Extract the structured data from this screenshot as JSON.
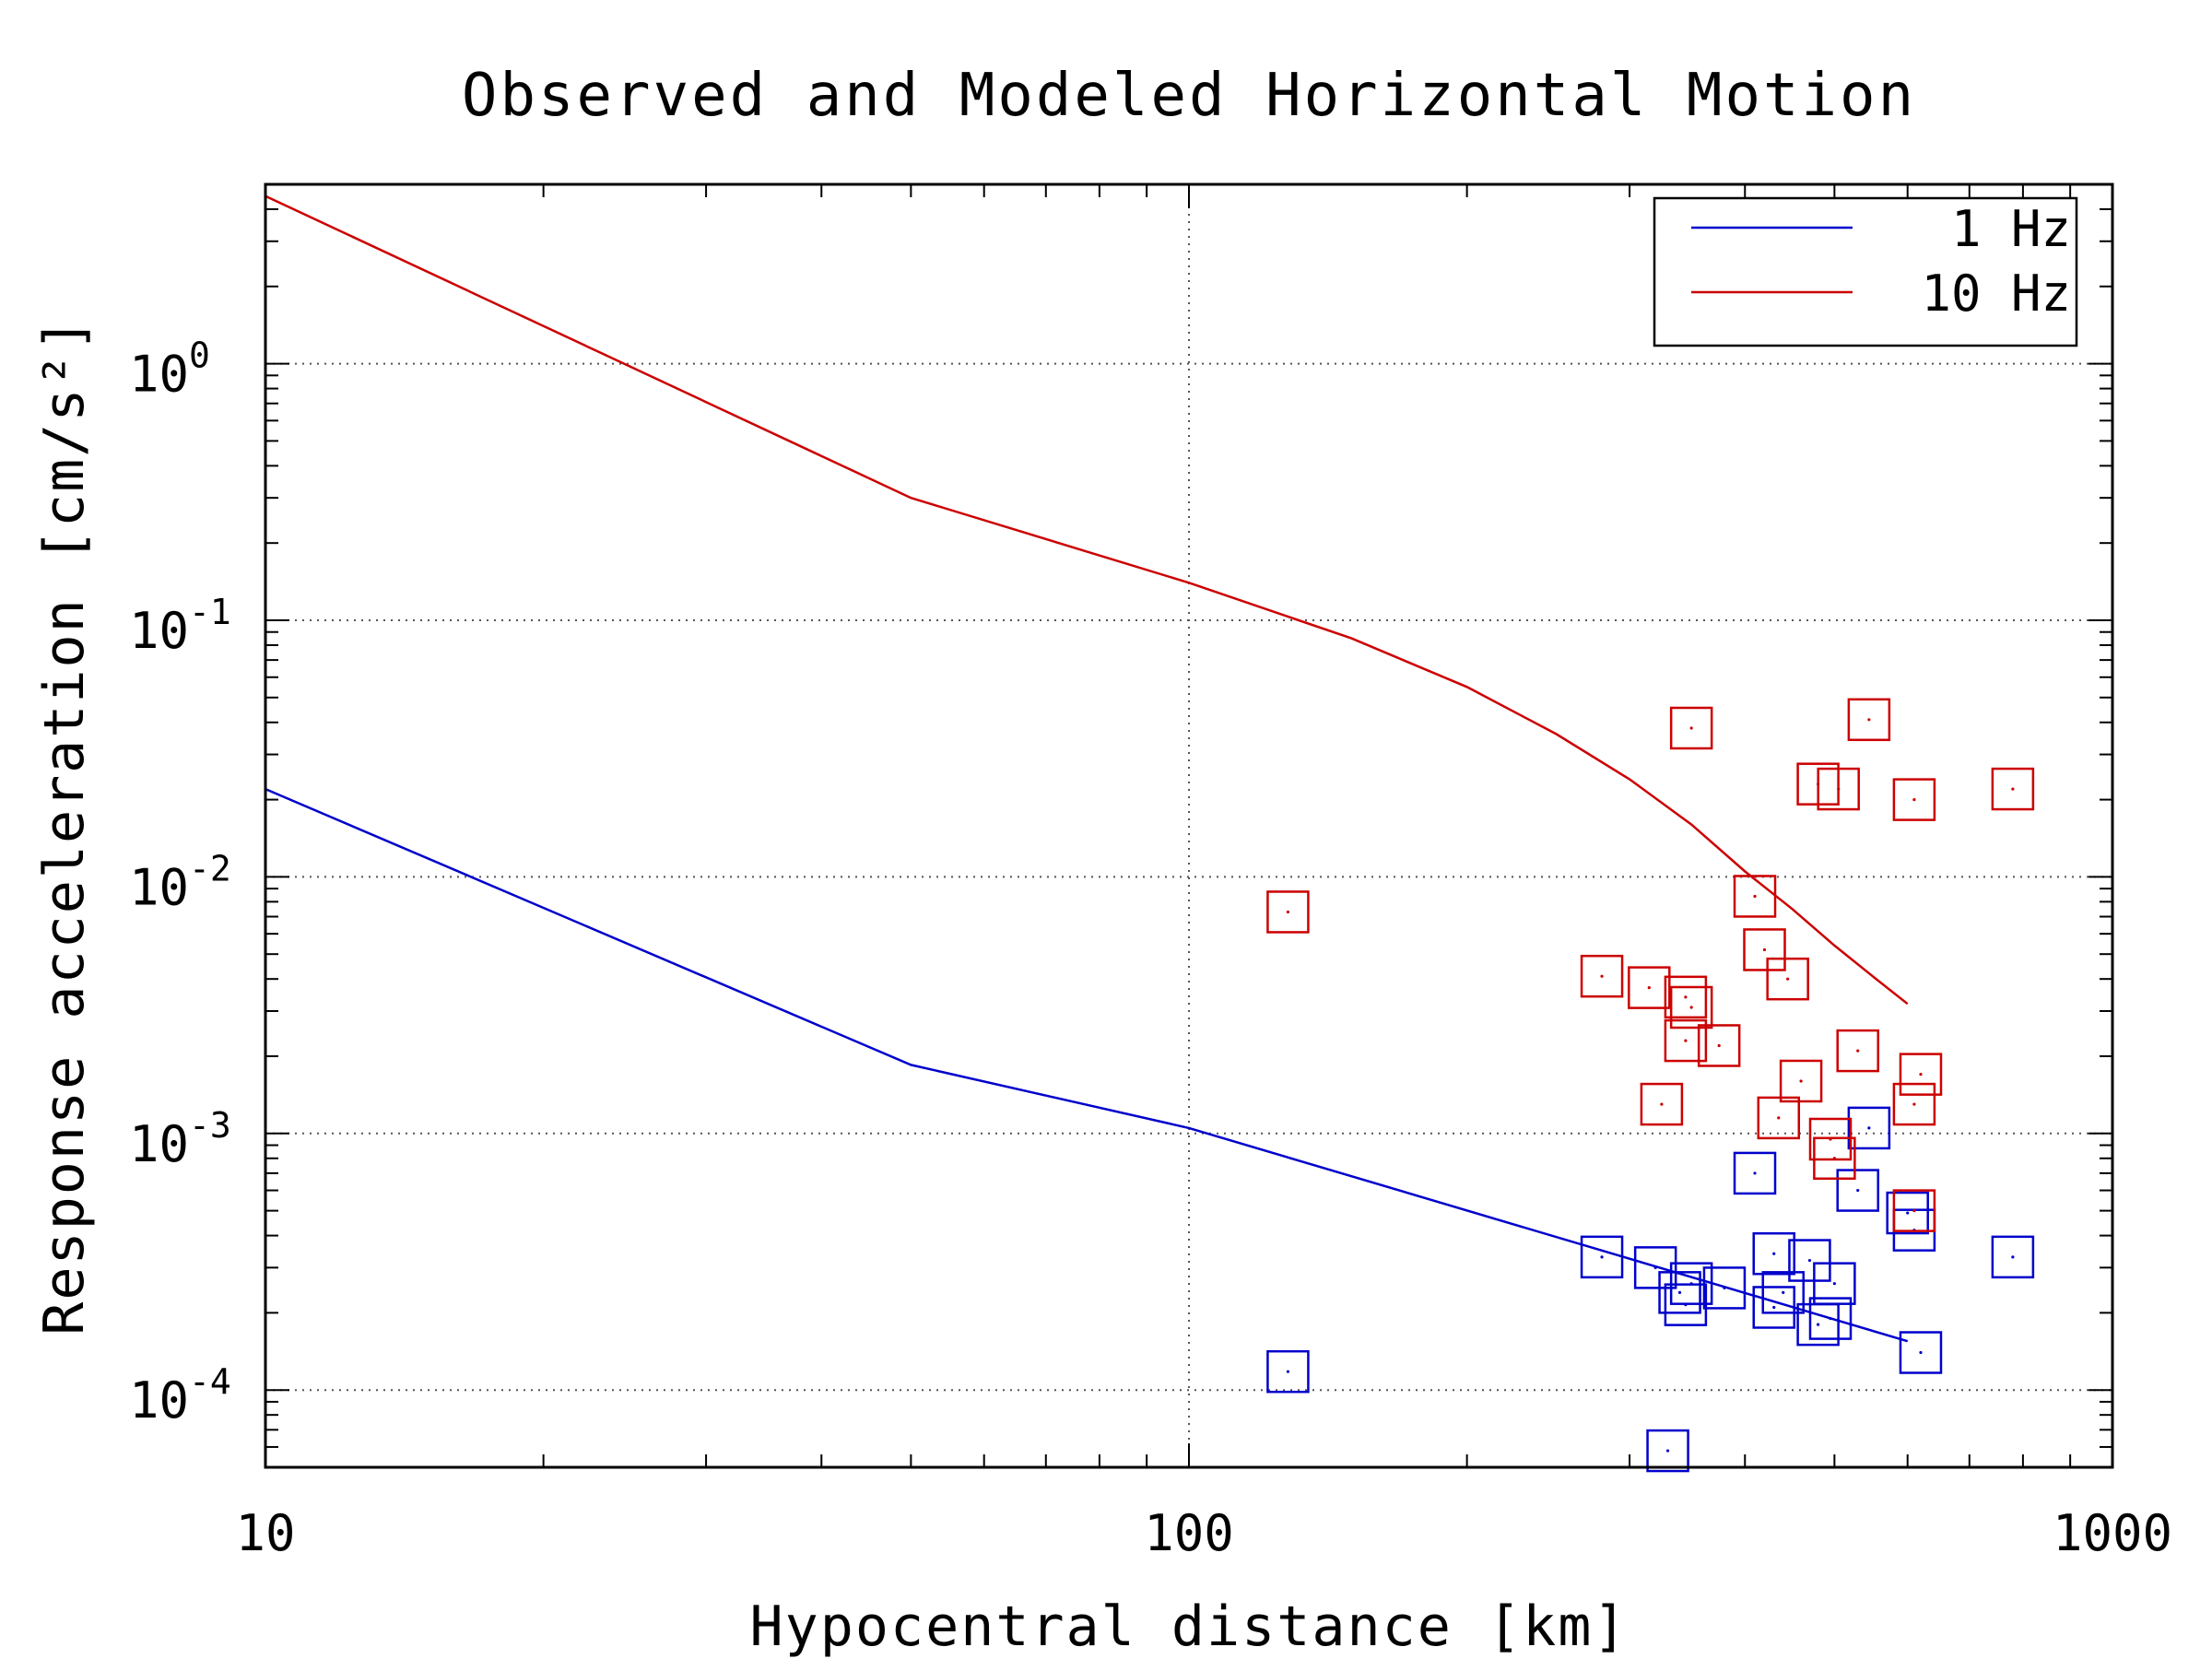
{
  "chart_data": {
    "type": "scatter",
    "title": "Observed and Modeled Horizontal Motion",
    "xlabel": "Hypocentral distance [km]",
    "ylabel": "Response acceleration [cm/s²]",
    "xscale": "log",
    "yscale": "log",
    "xlim": [
      10,
      1000
    ],
    "ylim": [
      5e-05,
      5
    ],
    "x_ticks": [
      {
        "value": 10,
        "label": "10"
      },
      {
        "value": 100,
        "label": "100"
      },
      {
        "value": 1000,
        "label": "1000"
      }
    ],
    "y_ticks": [
      {
        "value": 1,
        "base": "10",
        "exp": "0"
      },
      {
        "value": 0.1,
        "base": "10",
        "exp": "-1"
      },
      {
        "value": 0.01,
        "base": "10",
        "exp": "-2"
      },
      {
        "value": 0.001,
        "base": "10",
        "exp": "-3"
      },
      {
        "value": 0.0001,
        "base": "10",
        "exp": "-4"
      }
    ],
    "grid": true,
    "legend_position": "top-right",
    "series": [
      {
        "name": "1 Hz",
        "color": "#0000cc",
        "line": {
          "x": [
            10,
            50,
            100,
            600
          ],
          "y": [
            0.022,
            0.00185,
            0.00105,
            0.000155
          ]
        },
        "points": {
          "x": [
            128,
            280,
            320,
            340,
            345,
            350,
            380,
            410,
            430,
            430,
            440,
            470,
            480,
            495,
            500,
            530,
            545,
            600,
            610,
            620,
            780,
            330
          ],
          "y": [
            0.000118,
            0.00033,
            0.0003,
            0.00024,
            0.000215,
            0.00026,
            0.00025,
            0.0007,
            0.00034,
            0.00021,
            0.00024,
            0.00032,
            0.00018,
            0.00019,
            0.00026,
            0.0006,
            0.00105,
            0.00049,
            0.00042,
            0.00014,
            0.00033,
            5.8e-05
          ]
        }
      },
      {
        "name": "10 Hz",
        "color": "#cc0000",
        "line": {
          "x": [
            10,
            50,
            100,
            150,
            200,
            250,
            300,
            350,
            400,
            450,
            500,
            550,
            600
          ],
          "y": [
            4.5,
            0.3,
            0.14,
            0.085,
            0.055,
            0.036,
            0.024,
            0.016,
            0.0105,
            0.0075,
            0.0054,
            0.0041,
            0.0032
          ]
        },
        "points": {
          "x": [
            128,
            280,
            315,
            345,
            350,
            345,
            375,
            410,
            420,
            445,
            460,
            480,
            495,
            500,
            530,
            545,
            610,
            620,
            780,
            325,
            435,
            350
          ],
          "y": [
            0.0073,
            0.0041,
            0.0037,
            0.0034,
            0.0031,
            0.0023,
            0.0022,
            0.0084,
            0.0052,
            0.004,
            0.0016,
            0.023,
            0.00095,
            0.0008,
            0.0021,
            0.041,
            0.0005,
            0.0017,
            0.022,
            0.0013,
            0.00115,
            0.038
          ]
        }
      },
      {
        "name": "",
        "color": "#cc0000",
        "points": {
          "x": [
            505,
            610,
            610
          ],
          "y": [
            0.022,
            0.02,
            0.0013
          ]
        }
      }
    ]
  }
}
